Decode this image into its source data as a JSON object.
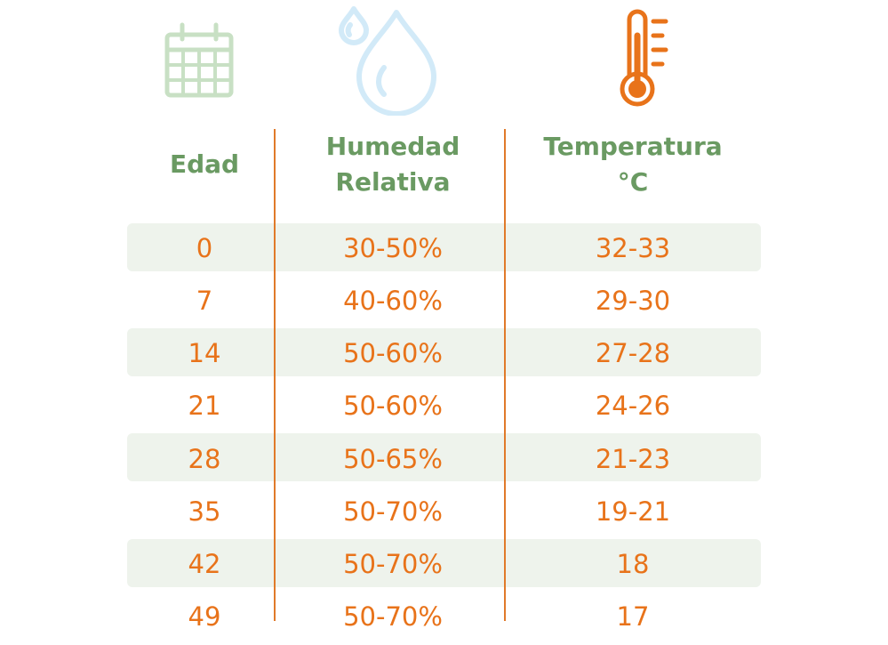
{
  "headers": {
    "age_label": "Edad",
    "humidity_line1": "Humedad",
    "humidity_line2": "Relativa",
    "temperature_line1": "Temperatura",
    "temperature_line2": "°C"
  },
  "icons": {
    "age": "calendar-icon",
    "humidity": "water-drop-icon",
    "temperature": "thermometer-icon"
  },
  "colors": {
    "header_green": "#6a9a62",
    "value_orange": "#e8731a",
    "divider_orange": "#e07a2a",
    "row_shade": "#eef3ec",
    "calendar_icon": "#c8e0c4",
    "drop_icon": "#d2eaf8",
    "thermometer_icon": "#e8731a"
  },
  "rows": [
    {
      "age": "0",
      "humidity": "30-50%",
      "temperature": "32-33"
    },
    {
      "age": "7",
      "humidity": "40-60%",
      "temperature": "29-30"
    },
    {
      "age": "14",
      "humidity": "50-60%",
      "temperature": "27-28"
    },
    {
      "age": "21",
      "humidity": "50-60%",
      "temperature": "24-26"
    },
    {
      "age": "28",
      "humidity": "50-65%",
      "temperature": "21-23"
    },
    {
      "age": "35",
      "humidity": "50-70%",
      "temperature": "19-21"
    },
    {
      "age": "42",
      "humidity": "50-70%",
      "temperature": "18"
    },
    {
      "age": "49",
      "humidity": "50-70%",
      "temperature": "17"
    }
  ]
}
